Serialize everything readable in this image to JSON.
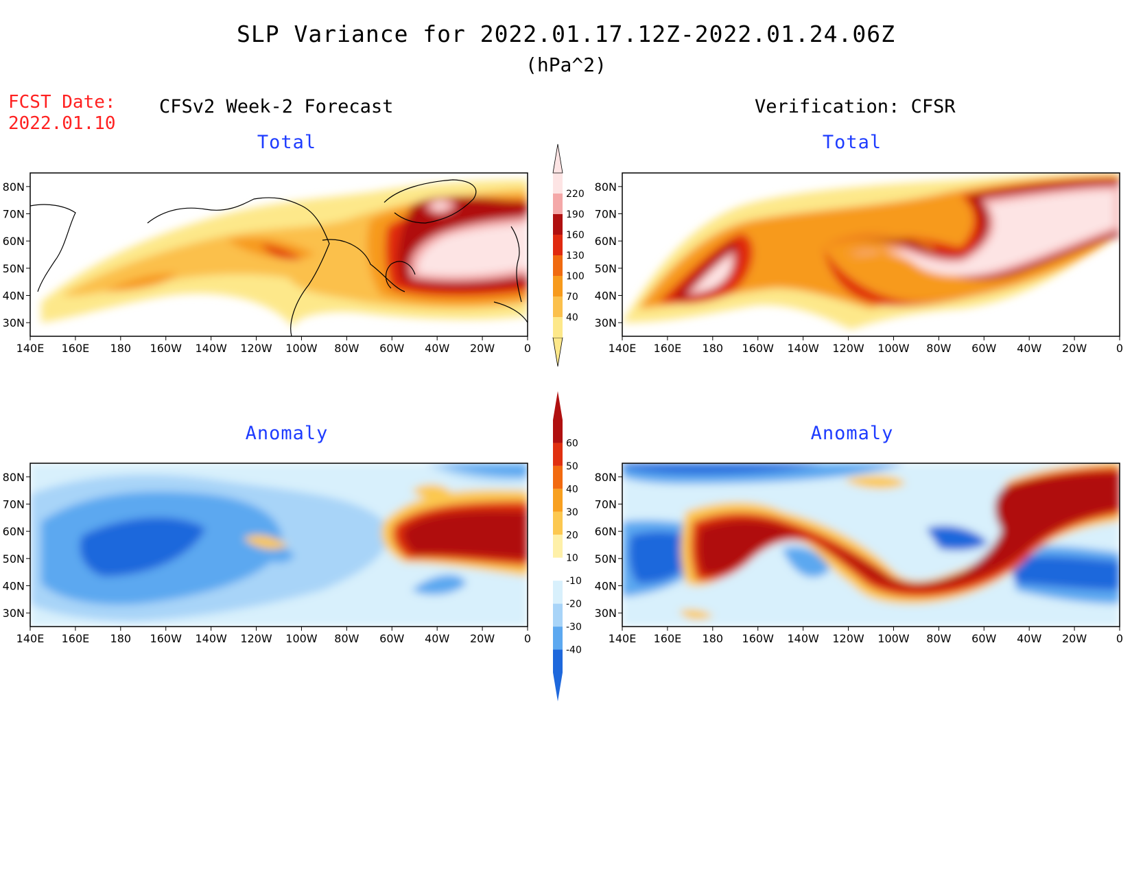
{
  "title": "SLP Variance for 2022.01.17.12Z-2022.01.24.06Z",
  "units": "(hPa^2)",
  "fcst": {
    "label": "FCST Date:",
    "date": "2022.01.10"
  },
  "left_heading": "CFSv2 Week-2 Forecast",
  "right_heading": "Verification: CFSR",
  "panels": {
    "forecast_total": "Total",
    "verification_total": "Total",
    "forecast_anomaly": "Anomaly",
    "verification_anomaly": "Anomaly"
  },
  "axes": {
    "lon_labels": [
      "140E",
      "160E",
      "180",
      "160W",
      "140W",
      "120W",
      "100W",
      "80W",
      "60W",
      "40W",
      "20W",
      "0"
    ],
    "lat_labels": [
      "80N",
      "70N",
      "60N",
      "50N",
      "40N",
      "30N"
    ],
    "lon_range": [
      140,
      360
    ],
    "lat_range": [
      25,
      85
    ]
  },
  "colorbar_total": {
    "levels": [
      "40",
      "70",
      "100",
      "130",
      "160",
      "190",
      "220"
    ],
    "colors": [
      "#fde88a",
      "#fbc04c",
      "#f79a1c",
      "#f06a10",
      "#e02a10",
      "#b01010",
      "#f4a8a8",
      "#fde4e4"
    ]
  },
  "colorbar_anomaly": {
    "levels": [
      "60",
      "50",
      "40",
      "30",
      "20",
      "10",
      "-10",
      "-20",
      "-30",
      "-40"
    ],
    "colors": [
      "#b01010",
      "#e03010",
      "#f26a10",
      "#f8a020",
      "#fcc850",
      "#fef0a8",
      "#ffffff",
      "#d8f0fc",
      "#a8d4f8",
      "#5ca8f0",
      "#1e68dc"
    ]
  }
}
